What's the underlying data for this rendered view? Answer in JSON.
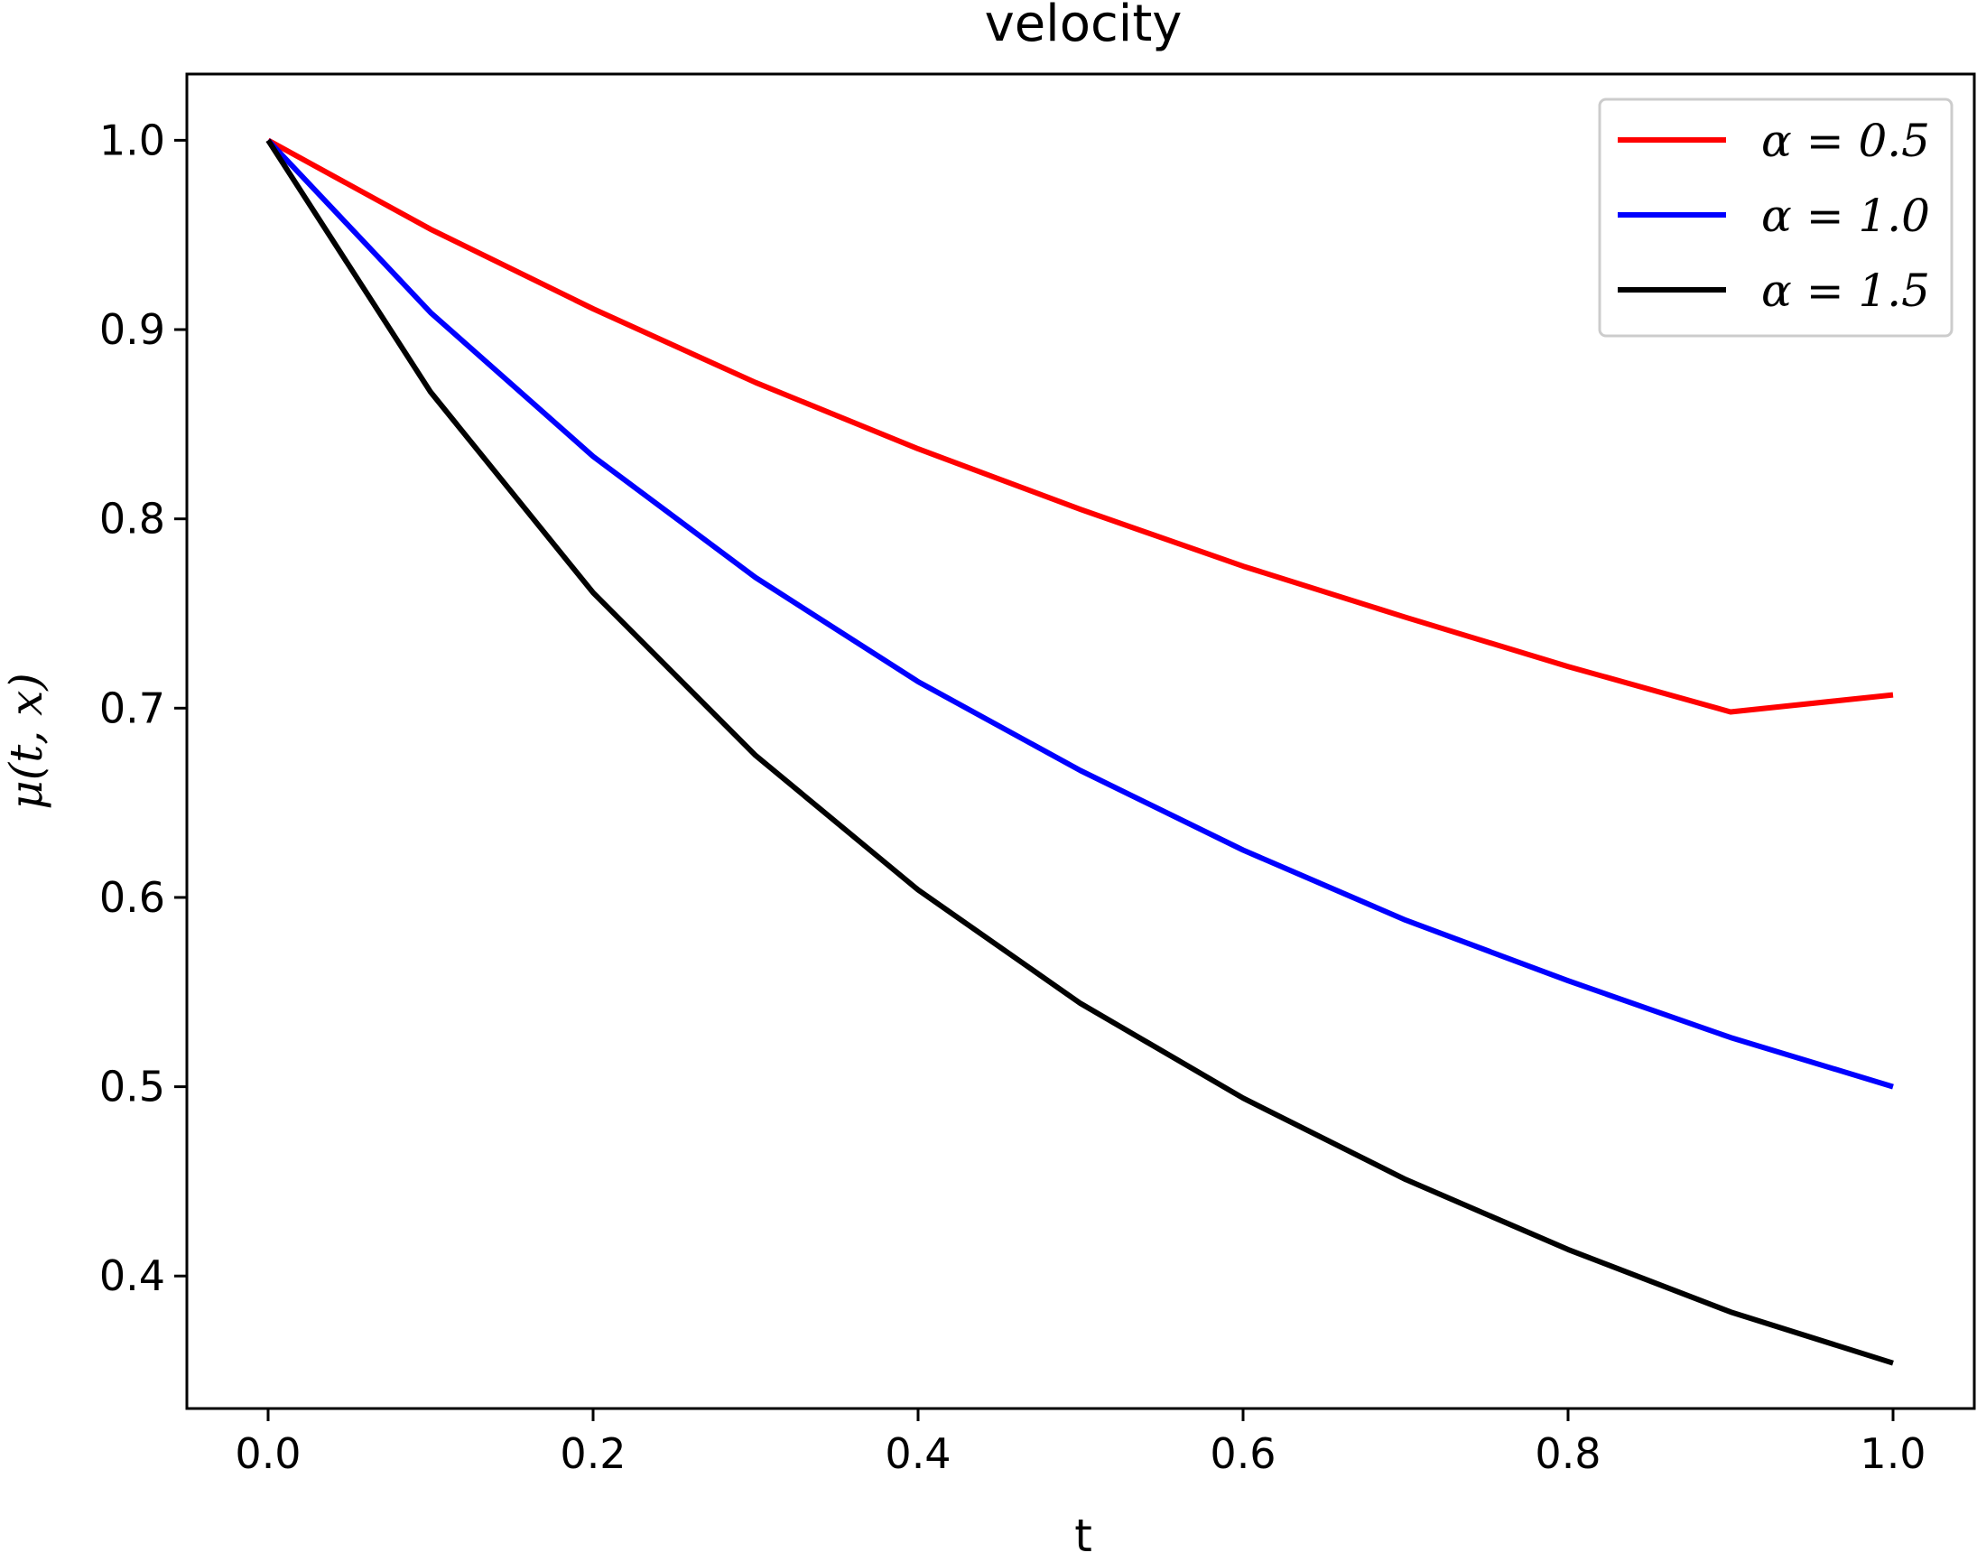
{
  "chart_data": {
    "type": "line",
    "title": "velocity",
    "xlabel": "t",
    "ylabel": "μ(t, x)",
    "xlim": [
      -0.05,
      1.05
    ],
    "ylim": [
      0.33,
      1.035
    ],
    "x_ticks": [
      0.0,
      0.2,
      0.4,
      0.6,
      0.8,
      1.0
    ],
    "x_tick_labels": [
      "0.0",
      "0.2",
      "0.4",
      "0.6",
      "0.8",
      "1.0"
    ],
    "y_ticks": [
      0.4,
      0.5,
      0.6,
      0.7,
      0.8,
      0.9,
      1.0
    ],
    "y_tick_labels": [
      "0.4",
      "0.5",
      "0.6",
      "0.7",
      "0.8",
      "0.9",
      "1.0"
    ],
    "grid": false,
    "legend_position": "top-right",
    "series": [
      {
        "name": "α = 0.5",
        "color": "#ff0000",
        "x": [
          0.0,
          0.1,
          0.2,
          0.3,
          0.4,
          0.5,
          0.6,
          0.7,
          0.8,
          0.9,
          1.0
        ],
        "y": [
          1.0,
          0.953,
          0.911,
          0.872,
          0.837,
          0.805,
          0.775,
          0.748,
          0.722,
          0.698,
          0.707
        ]
      },
      {
        "name": "α = 1.0",
        "color": "#0000ff",
        "x": [
          0.0,
          0.1,
          0.2,
          0.3,
          0.4,
          0.5,
          0.6,
          0.7,
          0.8,
          0.9,
          1.0
        ],
        "y": [
          1.0,
          0.909,
          0.833,
          0.769,
          0.714,
          0.667,
          0.625,
          0.588,
          0.556,
          0.526,
          0.5
        ]
      },
      {
        "name": "α = 1.5",
        "color": "#000000",
        "x": [
          0.0,
          0.1,
          0.2,
          0.3,
          0.4,
          0.5,
          0.6,
          0.7,
          0.8,
          0.9,
          1.0
        ],
        "y": [
          1.0,
          0.867,
          0.761,
          0.675,
          0.604,
          0.544,
          0.494,
          0.451,
          0.414,
          0.381,
          0.354
        ]
      }
    ]
  }
}
